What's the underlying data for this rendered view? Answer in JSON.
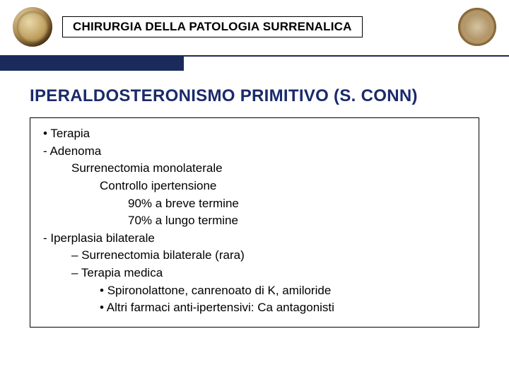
{
  "header": {
    "title": "CHIRURGIA DELLA PATOLOGIA SURRENALICA"
  },
  "section": {
    "title": "IPERALDOSTERONISMO PRIMITIVO (S. CONN)"
  },
  "content": {
    "lines": [
      {
        "text": "Terapia",
        "cls": "lvl0 bullet-dot"
      },
      {
        "text": "- Adenoma",
        "cls": "lvl1"
      },
      {
        "text": "Surrenectomia monolaterale",
        "cls": "lvl2"
      },
      {
        "text": "Controllo ipertensione",
        "cls": "lvl3"
      },
      {
        "text": "90% a breve termine",
        "cls": "lvl4"
      },
      {
        "text": "70% a lungo termine",
        "cls": "lvl4"
      },
      {
        "text": "- Iperplasia bilaterale",
        "cls": "lvl1"
      },
      {
        "text": "Surrenectomia bilaterale (rara)",
        "cls": "lvl2d bullet-dash"
      },
      {
        "text": "Terapia medica",
        "cls": "lvl2d bullet-dash"
      },
      {
        "text": "Spironolattone, canrenoato di K, amiloride",
        "cls": "lvl3b bullet-sq"
      },
      {
        "text": "Altri farmaci anti-ipertensivi: Ca antagonisti",
        "cls": "lvl3b bullet-sq"
      }
    ]
  },
  "colors": {
    "blue_bar": "#1a2a5a",
    "title_text": "#1a2a6a",
    "border": "#000000",
    "background": "#ffffff"
  }
}
